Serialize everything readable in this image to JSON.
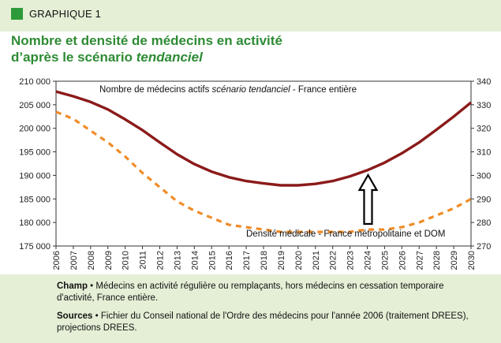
{
  "header": {
    "label": "GRAPHIQUE 1"
  },
  "title": {
    "line1": "Nombre et densité de médecins en activité",
    "line2_prefix": "d’après le scénario ",
    "line2_italic": "tendanciel"
  },
  "notes": {
    "champ_label": "Champ",
    "champ_text": "Médecins en activité régulière ou remplaçants, hors médecins en cessation temporaire d'activité, France entière.",
    "sources_label": "Sources",
    "sources_text": "Fichier du Conseil national de l'Ordre des médecins pour l'année 2006 (traitement DREES), projections DREES."
  },
  "chart_data": {
    "type": "line",
    "x": [
      2006,
      2007,
      2008,
      2009,
      2010,
      2011,
      2012,
      2013,
      2014,
      2015,
      2016,
      2017,
      2018,
      2019,
      2020,
      2021,
      2022,
      2023,
      2024,
      2025,
      2026,
      2027,
      2028,
      2029,
      2030
    ],
    "y_left_ylim": [
      175000,
      210000
    ],
    "y_left_ticks": [
      "175 000",
      "180 000",
      "185 000",
      "190 000",
      "195 000",
      "200 000",
      "205 000",
      "210 000"
    ],
    "y_right_ylim": [
      270,
      340
    ],
    "y_right_ticks": [
      "270",
      "280",
      "290",
      "300",
      "310",
      "320",
      "330",
      "340"
    ],
    "x_ticks": [
      "2006",
      "2007",
      "2008",
      "2009",
      "2010",
      "2011",
      "2012",
      "2013",
      "2014",
      "2015",
      "2016",
      "2017",
      "2018",
      "2019",
      "2020",
      "2021",
      "2022",
      "2023",
      "2024",
      "2025",
      "2026",
      "2027",
      "2028",
      "2029",
      "2030"
    ],
    "series": [
      {
        "name_prefix": "Nombre de médecins actifs ",
        "name_italic": "scénario tendanciel",
        "name_suffix": " - France entière",
        "axis": "left",
        "color": "#8b1a1a",
        "style": "solid",
        "values": [
          207800,
          206800,
          205600,
          204000,
          201900,
          199600,
          197000,
          194500,
          192400,
          190800,
          189600,
          188800,
          188300,
          187900,
          187900,
          188200,
          188800,
          189800,
          191100,
          192700,
          194700,
          197000,
          199700,
          202500,
          205500
        ]
      },
      {
        "name": "Densité médicale - France métropolitaine et DOM",
        "axis": "right",
        "color": "#f08c28",
        "style": "dashed",
        "values": [
          327,
          324,
          319,
          314,
          308,
          301,
          295,
          289,
          285,
          282,
          279,
          278,
          277,
          276,
          276,
          276,
          276,
          276,
          277,
          277,
          278,
          280,
          283,
          286,
          290
        ]
      }
    ],
    "annotation": "arrow-up-at-2024",
    "grid": false
  }
}
